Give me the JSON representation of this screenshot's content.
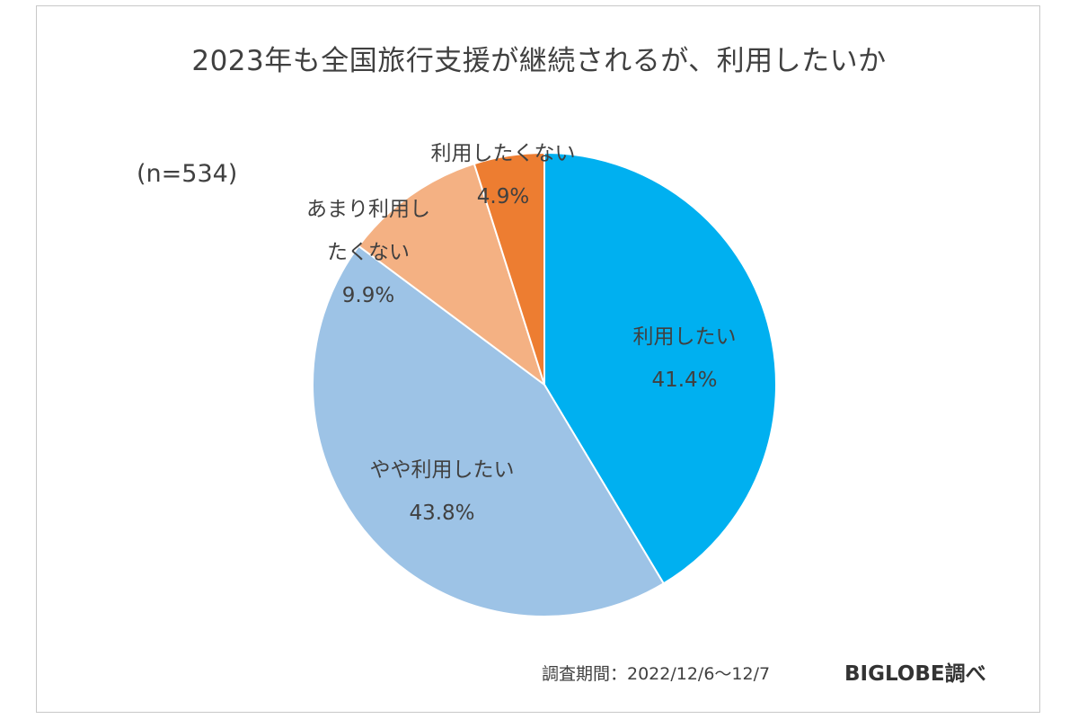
{
  "chart_data": {
    "type": "pie",
    "title": "2023年も全国旅行支援が継続されるが、利用したいか",
    "sample_size_label": "(n=534)",
    "start_angle_deg": 0,
    "direction": "clockwise",
    "slices": [
      {
        "label": "利用したい",
        "label_lines": [
          "利用したい"
        ],
        "value": 41.4,
        "value_label": "41.4%",
        "color": "#00B0F0"
      },
      {
        "label": "やや利用したい",
        "label_lines": [
          "やや利用したい"
        ],
        "value": 43.8,
        "value_label": "43.8%",
        "color": "#9DC3E6"
      },
      {
        "label": "あまり利用したくない",
        "label_lines": [
          "あまり利用し",
          "たくない"
        ],
        "value": 9.9,
        "value_label": "9.9%",
        "color": "#F4B183"
      },
      {
        "label": "利用したくない",
        "label_lines": [
          "利用したくない"
        ],
        "value": 4.9,
        "value_label": "4.9%",
        "color": "#ED7D31"
      }
    ]
  },
  "footer": {
    "period": "調査期間：2022/12/6～12/7",
    "source": "BIGLOBE調べ"
  }
}
